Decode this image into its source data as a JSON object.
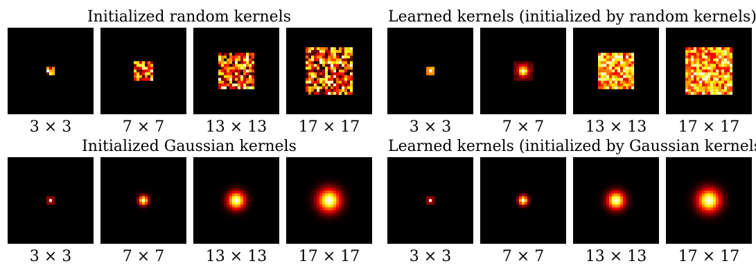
{
  "panels": [
    {
      "id": "init-random",
      "title": "Initialized random kernels",
      "kind": "random",
      "kernels": [
        {
          "size": 3,
          "label": "3 × 3"
        },
        {
          "size": 7,
          "label": "7 × 7"
        },
        {
          "size": 13,
          "label": "13 × 13"
        },
        {
          "size": 17,
          "label": "17 × 17"
        }
      ]
    },
    {
      "id": "learned-random",
      "title": "Learned kernels (initialized by random kernels)",
      "kind": "learned-random",
      "kernels": [
        {
          "size": 3,
          "label": "3 × 3"
        },
        {
          "size": 7,
          "label": "7 × 7"
        },
        {
          "size": 13,
          "label": "13 × 13"
        },
        {
          "size": 17,
          "label": "17 × 17"
        }
      ]
    },
    {
      "id": "init-gaussian",
      "title": "Initialized Gaussian kernels",
      "kind": "gaussian",
      "kernels": [
        {
          "size": 3,
          "label": "3 × 3"
        },
        {
          "size": 7,
          "label": "7 × 7"
        },
        {
          "size": 13,
          "label": "13 × 13"
        },
        {
          "size": 17,
          "label": "17 × 17"
        }
      ]
    },
    {
      "id": "learned-gaussian",
      "title": "Learned kernels (initialized by Gaussian kernels)",
      "kind": "gaussian",
      "kernels": [
        {
          "size": 3,
          "label": "3 × 3"
        },
        {
          "size": 7,
          "label": "7 × 7"
        },
        {
          "size": 13,
          "label": "13 × 13"
        },
        {
          "size": 17,
          "label": "17 × 17"
        }
      ]
    }
  ],
  "colormap": [
    "#000000",
    "#800000",
    "#ff0000",
    "#ff8000",
    "#ffff00",
    "#ffffff"
  ]
}
